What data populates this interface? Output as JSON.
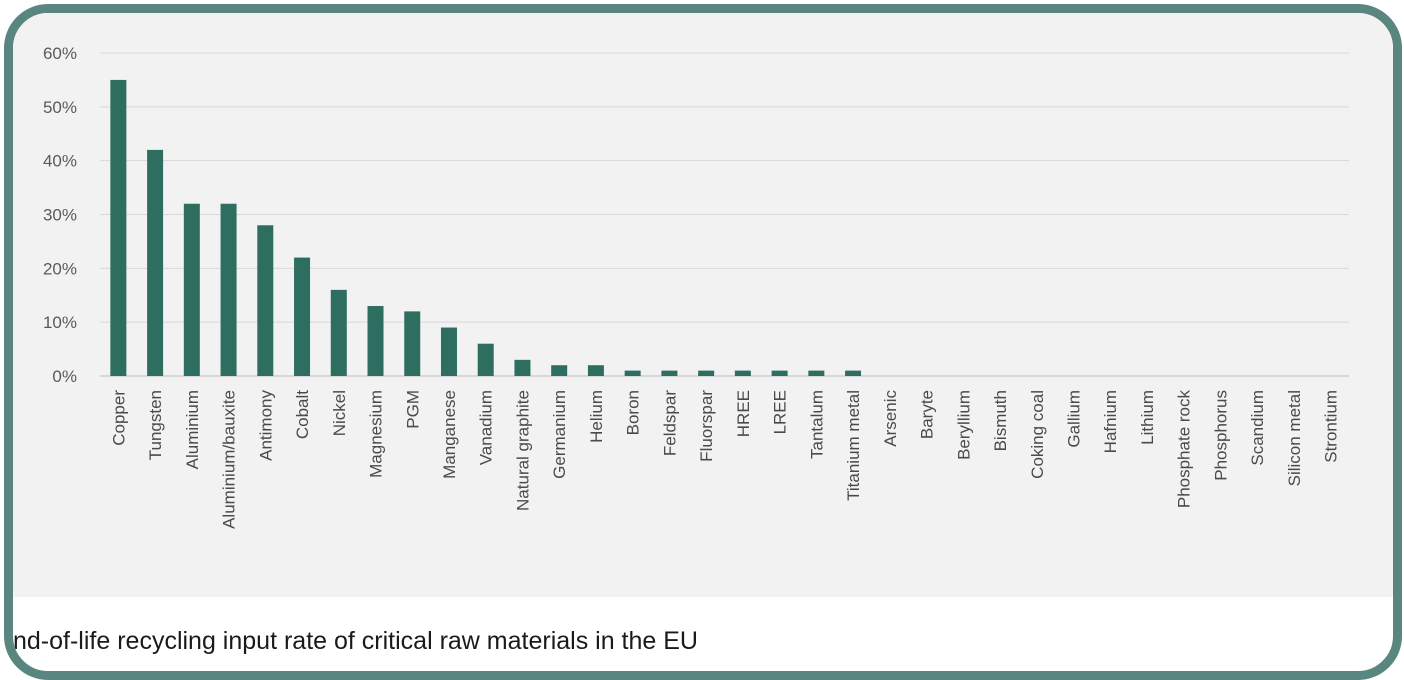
{
  "caption": "nd-of-life recycling input rate of critical raw materials in the EU",
  "colors": {
    "bar": "#2e6e61",
    "grid": "#d9d9d9",
    "frame": "#5a8680",
    "panel": "#f2f2f2"
  },
  "chart_data": {
    "type": "bar",
    "title": "",
    "xlabel": "",
    "ylabel": "",
    "ylim": [
      0,
      60
    ],
    "yticks": [
      "0%",
      "10%",
      "20%",
      "30%",
      "40%",
      "50%",
      "60%"
    ],
    "grid": true,
    "categories": [
      "Copper",
      "Tungsten",
      "Aluminium",
      "Aluminium/bauxite",
      "Antimony",
      "Cobalt",
      "Nickel",
      "Magnesium",
      "PGM",
      "Manganese",
      "Vanadium",
      "Natural graphite",
      "Germanium",
      "Helium",
      "Boron",
      "Feldspar",
      "Fluorspar",
      "HREE",
      "LREE",
      "Tantalum",
      "Titanium metal",
      "Arsenic",
      "Baryte",
      "Beryllium",
      "Bismuth",
      "Coking coal",
      "Gallium",
      "Hafnium",
      "Lithium",
      "Phosphate rock",
      "Phosphorus",
      "Scandium",
      "Silicon metal",
      "Strontium"
    ],
    "values": [
      55,
      42,
      32,
      32,
      28,
      22,
      16,
      13,
      12,
      9,
      6,
      3,
      2,
      2,
      1,
      1,
      1,
      1,
      1,
      1,
      1,
      0,
      0,
      0,
      0,
      0,
      0,
      0,
      0,
      0,
      0,
      0,
      0,
      0
    ]
  }
}
